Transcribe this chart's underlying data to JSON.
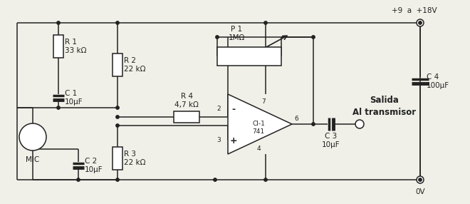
{
  "bg_color": "#f0f0e8",
  "line_color": "#222222",
  "labels": {
    "R1": "R 1\n33 kΩ",
    "R2": "R 2\n22 kΩ",
    "R3": "R 3\n22 kΩ",
    "R4": "R 4\n4,7 kΩ",
    "C1": "C 1\n10μF",
    "C2": "C 2\n10μF",
    "C3": "C 3\n10μF",
    "C4": "C 4\n100μF",
    "P1": "P 1\n1MΩ",
    "MIC": "MIC",
    "CI741": "CI-1\n741",
    "salida": "Salida\nAl transmisor",
    "vcc": "+9  a  +18V",
    "gnd": "0V"
  },
  "font_size": 7.5
}
